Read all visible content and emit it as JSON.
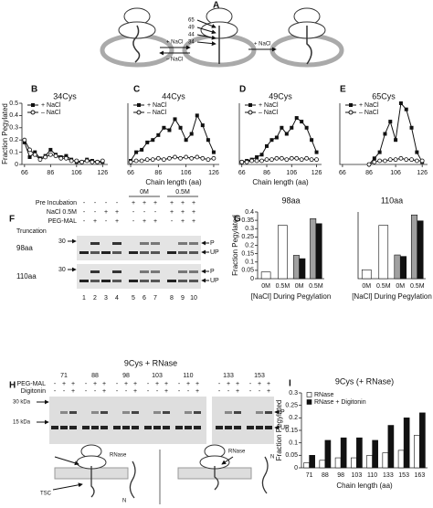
{
  "panel_labels": [
    "A",
    "B",
    "C",
    "D",
    "E",
    "F",
    "G",
    "H",
    "I"
  ],
  "schematic_a": {
    "residues": [
      "65",
      "49",
      "44",
      "34"
    ],
    "arrow_labels": [
      "+ NaCl",
      "– NaCl",
      "+ NaCl"
    ]
  },
  "chart_data": [
    {
      "type": "line",
      "title": "34Cys",
      "y_label": "Fraction Pegylated",
      "x": [
        66,
        70,
        74,
        78,
        82,
        86,
        90,
        94,
        98,
        102,
        106,
        110,
        114,
        118,
        122,
        126
      ],
      "series": [
        {
          "name": "+ NaCl",
          "color": "#111111",
          "marker": "filled-square",
          "values": [
            0.18,
            0.06,
            0.1,
            0.05,
            0.07,
            0.12,
            0.08,
            0.06,
            0.07,
            0.04,
            0.02,
            0.02,
            0.04,
            0.03,
            0.02,
            0.02
          ]
        },
        {
          "name": "– NaCl",
          "color": "#111111",
          "marker": "open-circle",
          "values": [
            0.2,
            0.12,
            0.08,
            0.04,
            0.06,
            0.08,
            0.07,
            0.05,
            0.05,
            0.03,
            0.03,
            0.02,
            0.03,
            0.02,
            0.02,
            0.03
          ]
        }
      ],
      "xlim": [
        64,
        130
      ],
      "xticks": [
        66,
        86,
        106,
        126
      ],
      "ylim": [
        0,
        0.5
      ],
      "yticks": [
        0,
        0.1,
        0.2,
        0.3,
        0.4,
        0.5
      ]
    },
    {
      "type": "line",
      "title": "44Cys",
      "x_label": "Chain length (aa)",
      "x": [
        66,
        70,
        74,
        78,
        82,
        86,
        90,
        94,
        98,
        102,
        106,
        110,
        114,
        118,
        122,
        126
      ],
      "series": [
        {
          "name": "+ NaCl",
          "color": "#111111",
          "marker": "filled-square",
          "values": [
            0.03,
            0.1,
            0.12,
            0.18,
            0.2,
            0.24,
            0.3,
            0.28,
            0.37,
            0.3,
            0.2,
            0.25,
            0.4,
            0.32,
            0.2,
            0.1
          ]
        },
        {
          "name": "– NaCl",
          "color": "#111111",
          "marker": "open-circle",
          "values": [
            0.02,
            0.03,
            0.03,
            0.04,
            0.04,
            0.05,
            0.04,
            0.05,
            0.06,
            0.05,
            0.06,
            0.05,
            0.06,
            0.05,
            0.04,
            0.05
          ]
        }
      ],
      "xlim": [
        64,
        130
      ],
      "xticks": [
        66,
        86,
        106,
        126
      ],
      "ylim": [
        0,
        0.5
      ]
    },
    {
      "type": "line",
      "title": "49Cys",
      "x_label": "Chain length (aa)",
      "x": [
        66,
        70,
        74,
        78,
        82,
        86,
        90,
        94,
        98,
        102,
        106,
        110,
        114,
        118,
        122,
        126
      ],
      "series": [
        {
          "name": "+ NaCl",
          "color": "#111111",
          "marker": "filled-square",
          "values": [
            0.02,
            0.03,
            0.04,
            0.06,
            0.08,
            0.15,
            0.2,
            0.22,
            0.3,
            0.25,
            0.3,
            0.38,
            0.35,
            0.3,
            0.2,
            0.1
          ]
        },
        {
          "name": "– NaCl",
          "color": "#111111",
          "marker": "open-circle",
          "values": [
            0.02,
            0.02,
            0.03,
            0.03,
            0.03,
            0.04,
            0.04,
            0.05,
            0.05,
            0.04,
            0.05,
            0.05,
            0.04,
            0.05,
            0.04,
            0.04
          ]
        }
      ],
      "xlim": [
        64,
        130
      ],
      "xticks": [
        66,
        86,
        106,
        126
      ],
      "ylim": [
        0,
        0.5
      ]
    },
    {
      "type": "line",
      "title": "65Cys",
      "x": [
        86,
        90,
        94,
        98,
        102,
        106,
        110,
        114,
        118,
        122,
        126
      ],
      "series": [
        {
          "name": "+ NaCl",
          "color": "#111111",
          "marker": "filled-square",
          "values": [
            0.0,
            0.05,
            0.1,
            0.25,
            0.35,
            0.2,
            0.5,
            0.45,
            0.3,
            0.1,
            0.02
          ]
        },
        {
          "name": "– NaCl",
          "color": "#111111",
          "marker": "open-circle",
          "values": [
            0.0,
            0.02,
            0.03,
            0.03,
            0.04,
            0.04,
            0.05,
            0.04,
            0.04,
            0.03,
            0.03
          ]
        }
      ],
      "xlim": [
        64,
        130
      ],
      "xticks": [
        66,
        86,
        106,
        126
      ],
      "ylim": [
        0,
        0.5
      ]
    },
    {
      "type": "bar",
      "title": "98aa",
      "y_label": "Fraction Pegylated",
      "x_label": "[NaCl] During Pegylation",
      "categories": [
        "0M",
        "0.5M",
        "0M",
        "0.5M"
      ],
      "series": [
        {
          "color": "#ffffff",
          "values": [
            0.04,
            0.32,
            null,
            null
          ]
        },
        {
          "color": "#a0a0a0",
          "values": [
            null,
            null,
            0.14,
            0.36
          ]
        },
        {
          "color": "#111111",
          "values": [
            null,
            null,
            0.12,
            0.33
          ]
        }
      ],
      "ylim": [
        0,
        0.4
      ],
      "yticks": [
        0,
        0.05,
        0.1,
        0.15,
        0.2,
        0.25,
        0.3,
        0.35,
        0.4
      ]
    },
    {
      "type": "bar",
      "title": "110aa",
      "x_label": "[NaCl] During Pegylation",
      "categories": [
        "0M",
        "0.5M",
        "0M",
        "0.5M"
      ],
      "series": [
        {
          "color": "#ffffff",
          "values": [
            0.06,
            0.36,
            null,
            null
          ]
        },
        {
          "color": "#a0a0a0",
          "values": [
            null,
            null,
            0.16,
            0.43
          ]
        },
        {
          "color": "#111111",
          "values": [
            null,
            null,
            0.15,
            0.39
          ]
        }
      ],
      "ylim": [
        0,
        0.45
      ]
    },
    {
      "type": "bar",
      "title": "9Cys (+ RNase)",
      "y_label": "Fraction Pegylated",
      "x_label": "Chain length (aa)",
      "categories": [
        "71",
        "88",
        "98",
        "103",
        "110",
        "133",
        "153",
        "163"
      ],
      "series": [
        {
          "name": "RNase",
          "color": "#ffffff",
          "values": [
            0.02,
            0.03,
            0.04,
            0.04,
            0.05,
            0.06,
            0.07,
            0.13
          ]
        },
        {
          "name": "RNase + Digitonin",
          "color": "#111111",
          "values": [
            0.05,
            0.11,
            0.12,
            0.12,
            0.11,
            0.17,
            0.2,
            0.22
          ]
        }
      ],
      "ylim": [
        0,
        0.3
      ],
      "yticks": [
        0,
        0.05,
        0.1,
        0.15,
        0.2,
        0.25,
        0.3
      ],
      "legend": "upper-left"
    }
  ],
  "gel_f": {
    "rows": [
      {
        "label": "Pre Incubation",
        "lanes": [
          "-",
          "-",
          "-",
          "-",
          "+",
          "+",
          "+",
          "+",
          "+",
          "+"
        ]
      },
      {
        "label": "NaCl 0.5M",
        "lanes": [
          "-",
          "-",
          "+",
          "+",
          "-",
          "-",
          "-",
          "+",
          "+",
          "+"
        ]
      },
      {
        "label": "PEG-MAL",
        "lanes": [
          "-",
          "+",
          "-",
          "+",
          "-",
          "+",
          "+",
          "-",
          "+",
          "+"
        ]
      }
    ],
    "groups": [
      "0M",
      "0.5M"
    ],
    "truncation_label": "Truncation",
    "truncations": [
      "98aa",
      "110aa"
    ],
    "markers": [
      "30",
      "30"
    ],
    "bands": [
      "P",
      "UP"
    ],
    "lane_numbers": [
      "1",
      "2",
      "3",
      "4",
      "5",
      "6",
      "7",
      "8",
      "9",
      "10"
    ]
  },
  "gel_h": {
    "title": "9Cys + RNase",
    "truncations": [
      "71",
      "88",
      "98",
      "103",
      "110",
      "133",
      "153"
    ],
    "rows": [
      {
        "label": "PEG-MAL",
        "lanes": [
          "-",
          "+",
          "+"
        ]
      },
      {
        "label": "Digitonin",
        "lanes": [
          "-",
          "-",
          "+"
        ]
      }
    ],
    "markers": [
      "30 kDa",
      "15 kDa"
    ],
    "bands": [
      "P",
      "UP"
    ],
    "diagram_labels": [
      "RNase",
      "TSC",
      "N",
      "RNase",
      "N"
    ]
  }
}
